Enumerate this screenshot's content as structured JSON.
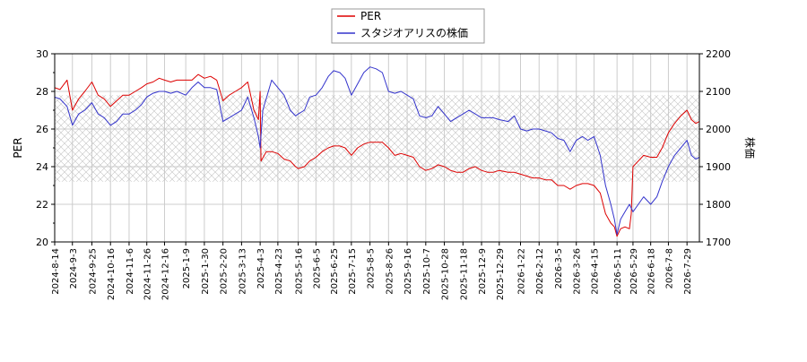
{
  "chart_data": {
    "type": "line",
    "title": "",
    "xlabel": "",
    "ylabel": "PER",
    "y2label": "株価",
    "ylim": [
      20,
      30
    ],
    "y2lim": [
      1700,
      2200
    ],
    "yticks": [
      20,
      22,
      24,
      26,
      28,
      30
    ],
    "y2ticks": [
      1700,
      1800,
      1900,
      2000,
      2100,
      2200
    ],
    "x_range": [
      "2024-08-14",
      "2026-08-12"
    ],
    "xticks": [
      "2024-8-14",
      "2024-9-3",
      "2024-9-25",
      "2024-10-16",
      "2024-11-6",
      "2024-11-26",
      "2024-12-16",
      "2025-1-9",
      "2025-1-30",
      "2025-2-20",
      "2025-3-13",
      "2025-4-3",
      "2025-4-23",
      "2025-5-16",
      "2025-6-5",
      "2025-6-25",
      "2025-7-15",
      "2025-8-5",
      "2025-8-26",
      "2025-9-16",
      "2025-10-7",
      "2025-10-28",
      "2025-11-18",
      "2025-12-9",
      "2025-12-29",
      "2026-1-22",
      "2026-2-12",
      "2026-3-5",
      "2026-3-26",
      "2026-4-15",
      "2026-5-11",
      "2026-5-29",
      "2026-6-18",
      "2026-7-8",
      "2026-7-29"
    ],
    "hatch_band": [
      23.2,
      27.8
    ],
    "grid": true,
    "legend_position": "top-center",
    "series": [
      {
        "name": "PER",
        "axis": "left",
        "color": "#dd0000",
        "points": [
          [
            "2024-08-14",
            28.2
          ],
          [
            "2024-08-20",
            28.1
          ],
          [
            "2024-08-28",
            28.6
          ],
          [
            "2024-09-03",
            27.0
          ],
          [
            "2024-09-10",
            27.6
          ],
          [
            "2024-09-17",
            28.0
          ],
          [
            "2024-09-25",
            28.5
          ],
          [
            "2024-10-02",
            27.8
          ],
          [
            "2024-10-09",
            27.6
          ],
          [
            "2024-10-16",
            27.2
          ],
          [
            "2024-10-23",
            27.5
          ],
          [
            "2024-10-30",
            27.8
          ],
          [
            "2024-11-06",
            27.8
          ],
          [
            "2024-11-13",
            28.0
          ],
          [
            "2024-11-20",
            28.2
          ],
          [
            "2024-11-26",
            28.4
          ],
          [
            "2024-12-03",
            28.5
          ],
          [
            "2024-12-10",
            28.7
          ],
          [
            "2024-12-16",
            28.6
          ],
          [
            "2024-12-23",
            28.5
          ],
          [
            "2024-12-30",
            28.6
          ],
          [
            "2025-01-09",
            28.6
          ],
          [
            "2025-01-16",
            28.6
          ],
          [
            "2025-01-23",
            28.9
          ],
          [
            "2025-01-30",
            28.7
          ],
          [
            "2025-02-06",
            28.8
          ],
          [
            "2025-02-13",
            28.6
          ],
          [
            "2025-02-20",
            27.5
          ],
          [
            "2025-02-27",
            27.8
          ],
          [
            "2025-03-06",
            28.0
          ],
          [
            "2025-03-13",
            28.2
          ],
          [
            "2025-03-20",
            28.5
          ],
          [
            "2025-03-27",
            27.0
          ],
          [
            "2025-04-01",
            26.5
          ],
          [
            "2025-04-03",
            28.0
          ],
          [
            "2025-04-04",
            24.3
          ],
          [
            "2025-04-10",
            24.8
          ],
          [
            "2025-04-16",
            24.8
          ],
          [
            "2025-04-23",
            24.7
          ],
          [
            "2025-04-30",
            24.4
          ],
          [
            "2025-05-07",
            24.3
          ],
          [
            "2025-05-13",
            24.0
          ],
          [
            "2025-05-16",
            23.9
          ],
          [
            "2025-05-23",
            24.0
          ],
          [
            "2025-05-29",
            24.3
          ],
          [
            "2025-06-05",
            24.5
          ],
          [
            "2025-06-12",
            24.8
          ],
          [
            "2025-06-19",
            25.0
          ],
          [
            "2025-06-25",
            25.1
          ],
          [
            "2025-07-02",
            25.1
          ],
          [
            "2025-07-08",
            25.0
          ],
          [
            "2025-07-15",
            24.6
          ],
          [
            "2025-07-22",
            25.0
          ],
          [
            "2025-07-29",
            25.2
          ],
          [
            "2025-08-05",
            25.3
          ],
          [
            "2025-08-12",
            25.3
          ],
          [
            "2025-08-19",
            25.3
          ],
          [
            "2025-08-26",
            25.0
          ],
          [
            "2025-09-02",
            24.6
          ],
          [
            "2025-09-09",
            24.7
          ],
          [
            "2025-09-16",
            24.6
          ],
          [
            "2025-09-23",
            24.5
          ],
          [
            "2025-09-30",
            24.0
          ],
          [
            "2025-10-07",
            23.8
          ],
          [
            "2025-10-14",
            23.9
          ],
          [
            "2025-10-21",
            24.1
          ],
          [
            "2025-10-28",
            24.0
          ],
          [
            "2025-11-04",
            23.8
          ],
          [
            "2025-11-11",
            23.7
          ],
          [
            "2025-11-18",
            23.7
          ],
          [
            "2025-11-25",
            23.9
          ],
          [
            "2025-12-02",
            24.0
          ],
          [
            "2025-12-09",
            23.8
          ],
          [
            "2025-12-16",
            23.7
          ],
          [
            "2025-12-22",
            23.7
          ],
          [
            "2025-12-29",
            23.8
          ],
          [
            "2026-01-08",
            23.7
          ],
          [
            "2026-01-15",
            23.7
          ],
          [
            "2026-01-22",
            23.6
          ],
          [
            "2026-01-29",
            23.5
          ],
          [
            "2026-02-05",
            23.4
          ],
          [
            "2026-02-12",
            23.4
          ],
          [
            "2026-02-19",
            23.3
          ],
          [
            "2026-02-26",
            23.3
          ],
          [
            "2026-03-05",
            23.0
          ],
          [
            "2026-03-12",
            23.0
          ],
          [
            "2026-03-19",
            22.8
          ],
          [
            "2026-03-26",
            23.0
          ],
          [
            "2026-04-02",
            23.1
          ],
          [
            "2026-04-08",
            23.1
          ],
          [
            "2026-04-15",
            23.0
          ],
          [
            "2026-04-22",
            22.6
          ],
          [
            "2026-04-28",
            21.5
          ],
          [
            "2026-05-04",
            21.0
          ],
          [
            "2026-05-08",
            20.8
          ],
          [
            "2026-05-11",
            20.3
          ],
          [
            "2026-05-15",
            20.7
          ],
          [
            "2026-05-20",
            20.8
          ],
          [
            "2026-05-25",
            20.7
          ],
          [
            "2026-05-27",
            21.5
          ],
          [
            "2026-05-29",
            24.0
          ],
          [
            "2026-06-04",
            24.3
          ],
          [
            "2026-06-10",
            24.6
          ],
          [
            "2026-06-18",
            24.5
          ],
          [
            "2026-06-25",
            24.5
          ],
          [
            "2026-07-01",
            25.0
          ],
          [
            "2026-07-08",
            25.8
          ],
          [
            "2026-07-15",
            26.3
          ],
          [
            "2026-07-22",
            26.7
          ],
          [
            "2026-07-29",
            27.0
          ],
          [
            "2026-08-03",
            26.5
          ],
          [
            "2026-08-08",
            26.3
          ],
          [
            "2026-08-12",
            26.4
          ]
        ]
      },
      {
        "name": "スタジオアリスの株価",
        "axis": "right",
        "color": "#3333cc",
        "points": [
          [
            "2024-08-14",
            2085
          ],
          [
            "2024-08-20",
            2080
          ],
          [
            "2024-08-28",
            2060
          ],
          [
            "2024-09-03",
            2010
          ],
          [
            "2024-09-10",
            2040
          ],
          [
            "2024-09-17",
            2050
          ],
          [
            "2024-09-25",
            2070
          ],
          [
            "2024-10-02",
            2040
          ],
          [
            "2024-10-09",
            2030
          ],
          [
            "2024-10-16",
            2010
          ],
          [
            "2024-10-23",
            2020
          ],
          [
            "2024-10-30",
            2040
          ],
          [
            "2024-11-06",
            2040
          ],
          [
            "2024-11-13",
            2050
          ],
          [
            "2024-11-20",
            2065
          ],
          [
            "2024-11-26",
            2085
          ],
          [
            "2024-12-03",
            2095
          ],
          [
            "2024-12-10",
            2100
          ],
          [
            "2024-12-16",
            2100
          ],
          [
            "2024-12-23",
            2095
          ],
          [
            "2024-12-30",
            2100
          ],
          [
            "2025-01-09",
            2090
          ],
          [
            "2025-01-16",
            2110
          ],
          [
            "2025-01-23",
            2125
          ],
          [
            "2025-01-30",
            2110
          ],
          [
            "2025-02-06",
            2110
          ],
          [
            "2025-02-13",
            2105
          ],
          [
            "2025-02-20",
            2020
          ],
          [
            "2025-02-27",
            2030
          ],
          [
            "2025-03-06",
            2040
          ],
          [
            "2025-03-13",
            2050
          ],
          [
            "2025-03-20",
            2085
          ],
          [
            "2025-03-27",
            2030
          ],
          [
            "2025-04-01",
            1980
          ],
          [
            "2025-04-03",
            1950
          ],
          [
            "2025-04-06",
            2050
          ],
          [
            "2025-04-16",
            2130
          ],
          [
            "2025-04-23",
            2110
          ],
          [
            "2025-04-30",
            2090
          ],
          [
            "2025-05-07",
            2050
          ],
          [
            "2025-05-13",
            2035
          ],
          [
            "2025-05-16",
            2040
          ],
          [
            "2025-05-23",
            2050
          ],
          [
            "2025-05-29",
            2085
          ],
          [
            "2025-06-05",
            2090
          ],
          [
            "2025-06-12",
            2110
          ],
          [
            "2025-06-19",
            2140
          ],
          [
            "2025-06-25",
            2155
          ],
          [
            "2025-07-02",
            2150
          ],
          [
            "2025-07-08",
            2135
          ],
          [
            "2025-07-15",
            2090
          ],
          [
            "2025-07-22",
            2120
          ],
          [
            "2025-07-29",
            2150
          ],
          [
            "2025-08-05",
            2165
          ],
          [
            "2025-08-12",
            2160
          ],
          [
            "2025-08-19",
            2150
          ],
          [
            "2025-08-26",
            2100
          ],
          [
            "2025-09-02",
            2095
          ],
          [
            "2025-09-09",
            2100
          ],
          [
            "2025-09-16",
            2090
          ],
          [
            "2025-09-23",
            2080
          ],
          [
            "2025-09-30",
            2035
          ],
          [
            "2025-10-07",
            2030
          ],
          [
            "2025-10-14",
            2035
          ],
          [
            "2025-10-21",
            2060
          ],
          [
            "2025-10-28",
            2040
          ],
          [
            "2025-11-04",
            2020
          ],
          [
            "2025-11-11",
            2030
          ],
          [
            "2025-11-18",
            2040
          ],
          [
            "2025-11-25",
            2050
          ],
          [
            "2025-12-02",
            2040
          ],
          [
            "2025-12-09",
            2030
          ],
          [
            "2025-12-16",
            2030
          ],
          [
            "2025-12-22",
            2030
          ],
          [
            "2025-12-29",
            2025
          ],
          [
            "2026-01-08",
            2020
          ],
          [
            "2026-01-15",
            2035
          ],
          [
            "2026-01-22",
            2000
          ],
          [
            "2026-01-29",
            1995
          ],
          [
            "2026-02-05",
            2000
          ],
          [
            "2026-02-12",
            2000
          ],
          [
            "2026-02-19",
            1995
          ],
          [
            "2026-02-26",
            1990
          ],
          [
            "2026-03-05",
            1975
          ],
          [
            "2026-03-12",
            1970
          ],
          [
            "2026-03-19",
            1940
          ],
          [
            "2026-03-26",
            1970
          ],
          [
            "2026-04-02",
            1980
          ],
          [
            "2026-04-08",
            1970
          ],
          [
            "2026-04-15",
            1980
          ],
          [
            "2026-04-22",
            1930
          ],
          [
            "2026-04-28",
            1850
          ],
          [
            "2026-05-04",
            1800
          ],
          [
            "2026-05-08",
            1760
          ],
          [
            "2026-05-11",
            1720
          ],
          [
            "2026-05-15",
            1760
          ],
          [
            "2026-05-20",
            1780
          ],
          [
            "2026-05-25",
            1800
          ],
          [
            "2026-05-29",
            1780
          ],
          [
            "2026-06-04",
            1800
          ],
          [
            "2026-06-10",
            1820
          ],
          [
            "2026-06-18",
            1800
          ],
          [
            "2026-06-25",
            1820
          ],
          [
            "2026-07-01",
            1860
          ],
          [
            "2026-07-08",
            1900
          ],
          [
            "2026-07-15",
            1930
          ],
          [
            "2026-07-22",
            1950
          ],
          [
            "2026-07-29",
            1970
          ],
          [
            "2026-08-03",
            1930
          ],
          [
            "2026-08-08",
            1920
          ],
          [
            "2026-08-12",
            1925
          ]
        ]
      }
    ]
  }
}
